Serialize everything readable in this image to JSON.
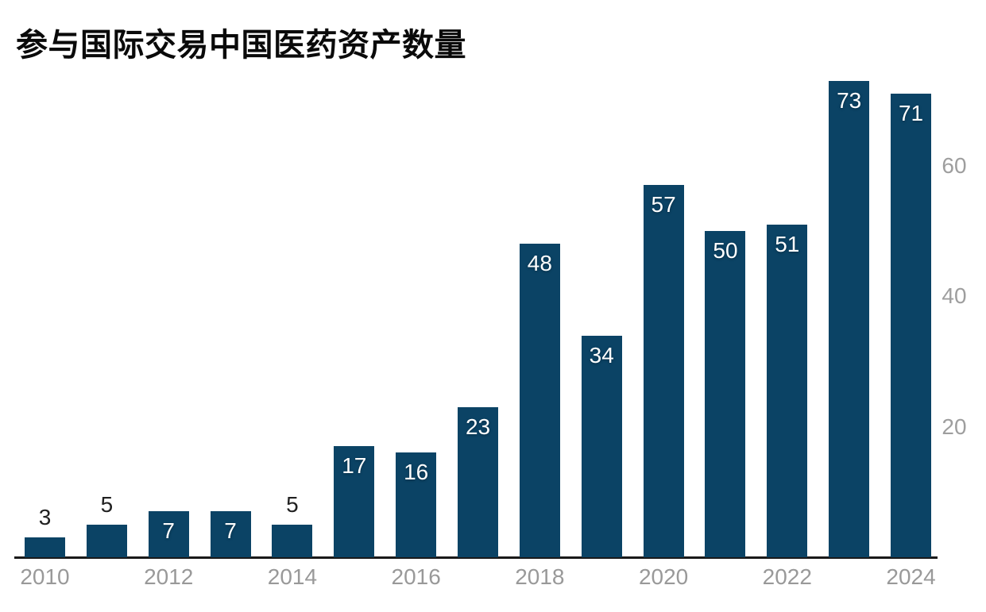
{
  "chart_data": {
    "type": "bar",
    "title": "参与国际交易中国医药资产数量",
    "categories": [
      "2010",
      "2011",
      "2012",
      "2013",
      "2014",
      "2015",
      "2016",
      "2017",
      "2018",
      "2019",
      "2020",
      "2021",
      "2022",
      "2023",
      "2024"
    ],
    "values": [
      3,
      5,
      7,
      7,
      5,
      17,
      16,
      23,
      48,
      34,
      57,
      50,
      51,
      73,
      71
    ],
    "x_tick_labels": [
      "2010",
      "2012",
      "2014",
      "2016",
      "2018",
      "2020",
      "2022",
      "2024"
    ],
    "y_ticks": [
      20,
      40,
      60
    ],
    "ylim": [
      0,
      76
    ],
    "xlabel": "",
    "ylabel": "",
    "grid": false,
    "legend": "none",
    "y_axis_position": "right",
    "data_labels": "on-bars",
    "bar_color": "#0b4365",
    "label_color_inside": "#ffffff",
    "label_color_outside": "#212121",
    "axis_line_color": "#1a1a1a",
    "tick_label_color": "#999999",
    "background_color": "#ffffff"
  }
}
